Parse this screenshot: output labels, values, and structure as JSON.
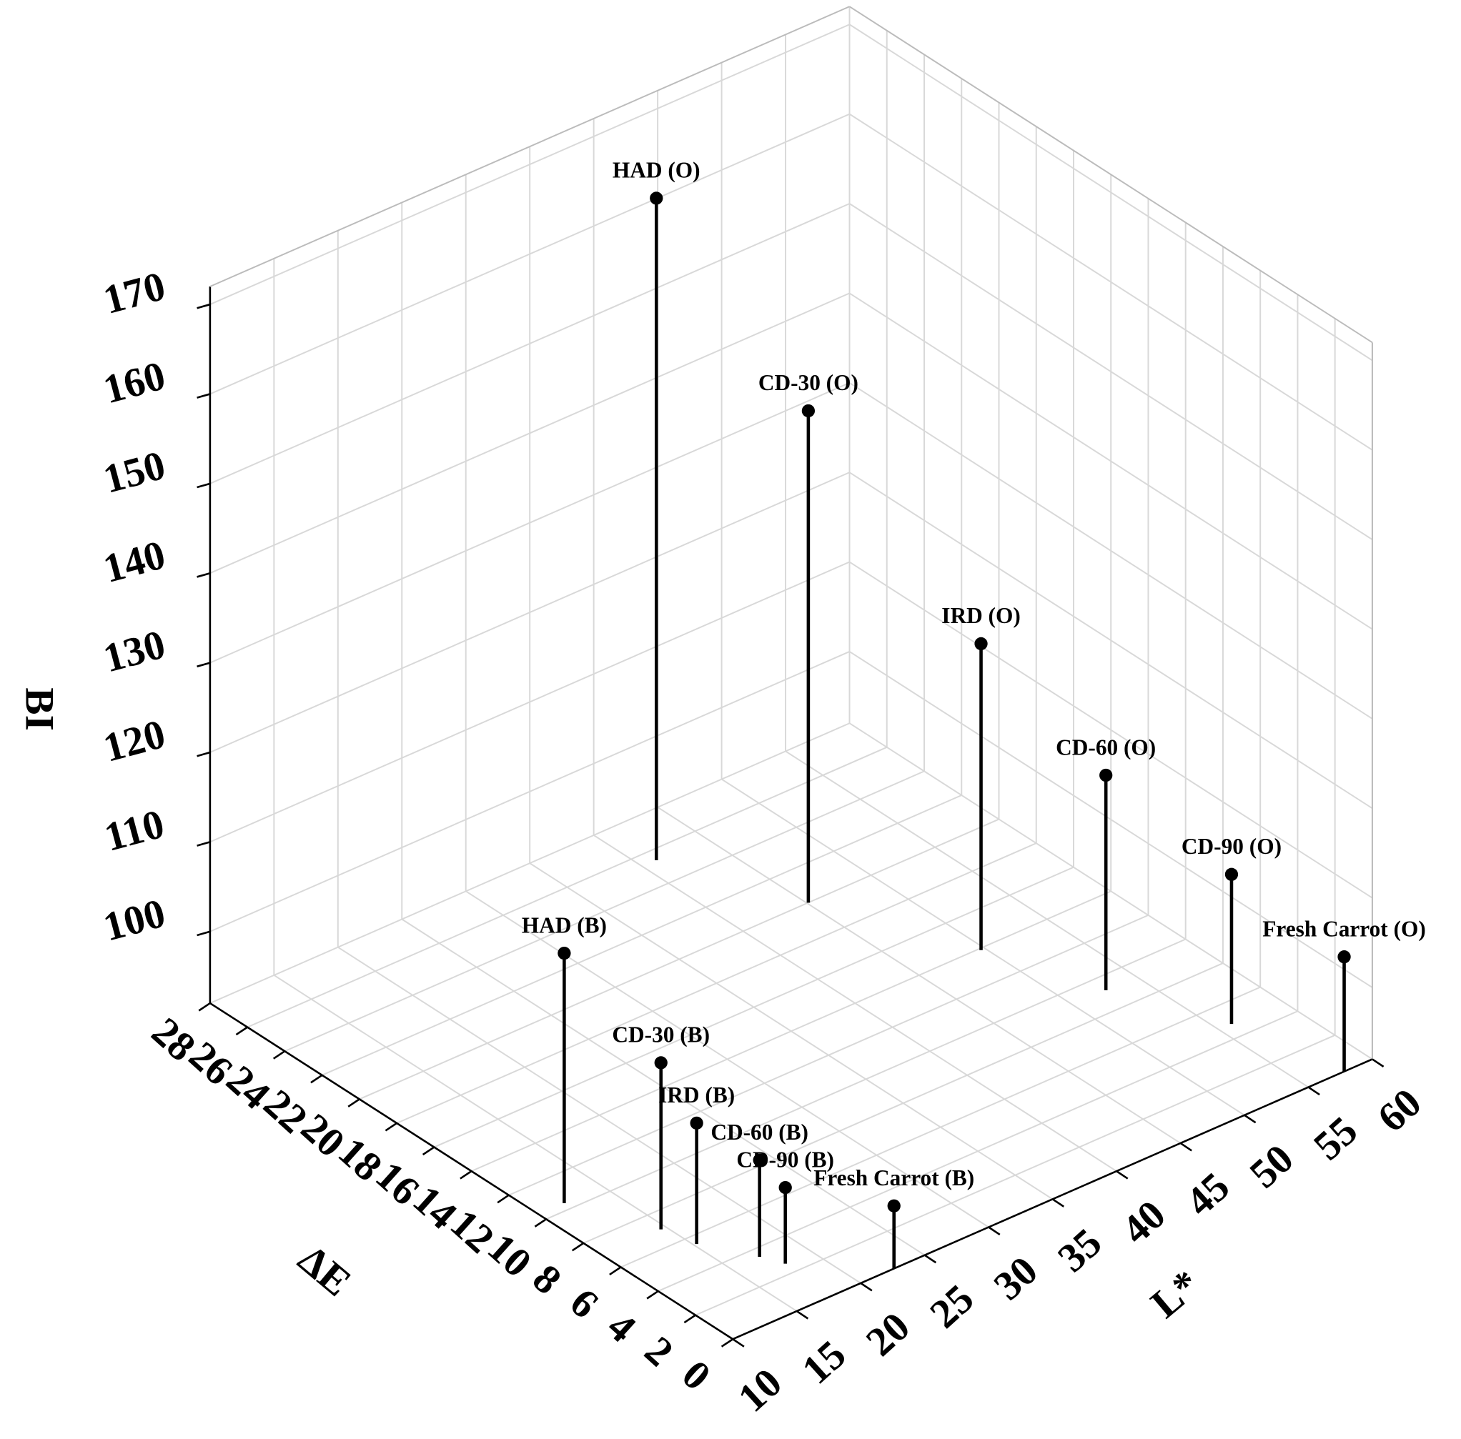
{
  "chart_data": {
    "type": "scatter3d",
    "xlabel": "L*",
    "ylabel": "ΔE",
    "zlabel": "BI",
    "labels": [
      "HAD (O)",
      "CD-30 (O)",
      "IRD (O)",
      "CD-60 (O)",
      "CD-90 (O)",
      "Fresh Carrot (O)",
      "HAD (B)",
      "CD-30 (B)",
      "IRD (B)",
      "CD-60 (B)",
      "CD-90 (B)",
      "Fresh Carrot (B)"
    ],
    "x": [
      41.1,
      45.1,
      49.7,
      52.6,
      56.0,
      57.8,
      12.0,
      14.6,
      15.2,
      17.2,
      17.9,
      22.6
    ],
    "y": [
      25.4,
      20.0,
      13.9,
      9.2,
      4.8,
      0,
      10.4,
      7.0,
      5.5,
      3.5,
      2.6,
      0
    ],
    "values": [
      165.9,
      146.9,
      126.2,
      116.0,
      108.7,
      104.8,
      119.9,
      110.6,
      105.5,
      102.8,
      100.5,
      99.0
    ],
    "color": "#000000",
    "xlim": [
      10,
      60
    ],
    "xticks": [
      10,
      15,
      20,
      25,
      30,
      35,
      40,
      45,
      50,
      55,
      60
    ],
    "ylim": [
      0,
      28
    ],
    "yticks": [
      0,
      2,
      4,
      6,
      8,
      10,
      12,
      14,
      16,
      18,
      20,
      22,
      24,
      26,
      28
    ],
    "zlim": [
      92,
      172
    ],
    "zticks": [
      100,
      110,
      120,
      130,
      140,
      150,
      160,
      170
    ],
    "grid": true
  }
}
